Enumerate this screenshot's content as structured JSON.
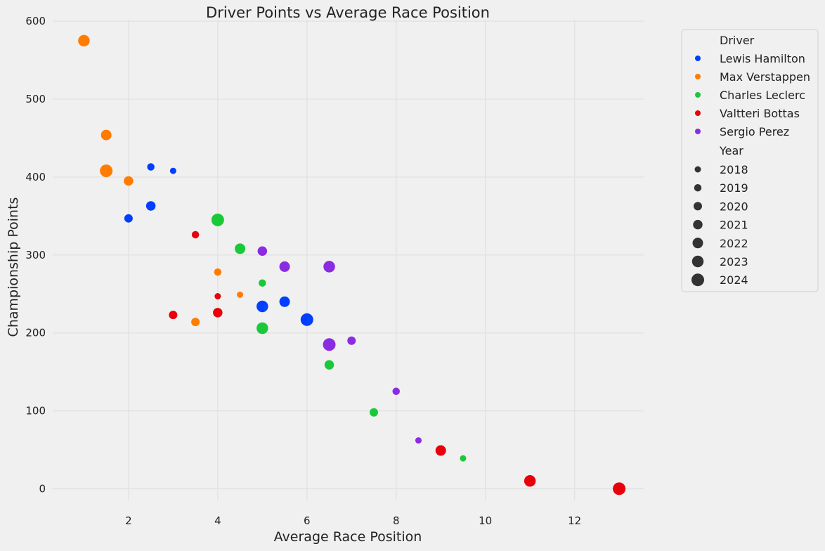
{
  "chart_data": {
    "type": "scatter",
    "title": "Driver Points vs Average Race Position",
    "xlabel": "Average Race Position",
    "ylabel": "Championship Points",
    "xlim": [
      0.3,
      13.55
    ],
    "ylim": [
      -15,
      602
    ],
    "x_ticks": [
      2,
      4,
      6,
      8,
      10,
      12
    ],
    "y_ticks": [
      0,
      100,
      200,
      300,
      400,
      500,
      600
    ],
    "grid": true,
    "legend_placement": "outside-right",
    "legend": {
      "hue_title": "Driver",
      "size_title": "Year",
      "years": [
        "2018",
        "2019",
        "2020",
        "2021",
        "2022",
        "2023",
        "2024"
      ]
    },
    "series": [
      {
        "name": "Lewis Hamilton",
        "color": "#023eff",
        "points": [
          {
            "x": 3.0,
            "y": 408,
            "year": 2018
          },
          {
            "x": 2.5,
            "y": 413,
            "year": 2019
          },
          {
            "x": 2.0,
            "y": 347,
            "year": 2020
          },
          {
            "x": 2.5,
            "y": 363,
            "year": 2021
          },
          {
            "x": 5.5,
            "y": 240,
            "year": 2022
          },
          {
            "x": 5.0,
            "y": 234,
            "year": 2023
          },
          {
            "x": 6.0,
            "y": 217,
            "year": 2024
          }
        ]
      },
      {
        "name": "Max Verstappen",
        "color": "#ff7c00",
        "points": [
          {
            "x": 4.5,
            "y": 249,
            "year": 2018
          },
          {
            "x": 4.0,
            "y": 278,
            "year": 2019
          },
          {
            "x": 3.5,
            "y": 214,
            "year": 2020
          },
          {
            "x": 2.0,
            "y": 395,
            "year": 2021
          },
          {
            "x": 1.5,
            "y": 454,
            "year": 2022
          },
          {
            "x": 1.0,
            "y": 575,
            "year": 2023
          },
          {
            "x": 1.5,
            "y": 408,
            "year": 2024
          }
        ]
      },
      {
        "name": "Charles Leclerc",
        "color": "#1ac938",
        "points": [
          {
            "x": 9.5,
            "y": 39,
            "year": 2018
          },
          {
            "x": 5.0,
            "y": 264,
            "year": 2019
          },
          {
            "x": 7.5,
            "y": 98,
            "year": 2020
          },
          {
            "x": 6.5,
            "y": 159,
            "year": 2021
          },
          {
            "x": 4.5,
            "y": 308,
            "year": 2022
          },
          {
            "x": 5.0,
            "y": 206,
            "year": 2023
          },
          {
            "x": 4.0,
            "y": 345,
            "year": 2024
          }
        ]
      },
      {
        "name": "Valtteri Bottas",
        "color": "#e8000b",
        "points": [
          {
            "x": 4.0,
            "y": 247,
            "year": 2018
          },
          {
            "x": 3.5,
            "y": 326,
            "year": 2019
          },
          {
            "x": 3.0,
            "y": 223,
            "year": 2020
          },
          {
            "x": 4.0,
            "y": 226,
            "year": 2021
          },
          {
            "x": 9.0,
            "y": 49,
            "year": 2022
          },
          {
            "x": 11.0,
            "y": 10,
            "year": 2023
          },
          {
            "x": 13.0,
            "y": 0,
            "year": 2024
          }
        ]
      },
      {
        "name": "Sergio Perez",
        "color": "#8b2be2",
        "points": [
          {
            "x": 8.5,
            "y": 62,
            "year": 2018
          },
          {
            "x": 8.0,
            "y": 125,
            "year": 2019
          },
          {
            "x": 7.0,
            "y": 190,
            "year": 2020
          },
          {
            "x": 5.0,
            "y": 305,
            "year": 2021
          },
          {
            "x": 5.5,
            "y": 285,
            "year": 2022
          },
          {
            "x": 6.5,
            "y": 285,
            "year": 2023
          },
          {
            "x": 6.5,
            "y": 185,
            "year": 2024
          }
        ]
      }
    ]
  }
}
